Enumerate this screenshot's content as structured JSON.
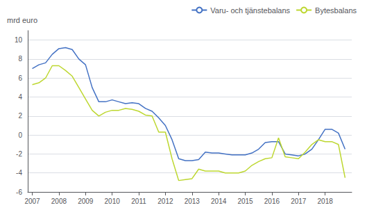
{
  "chart_data": {
    "type": "line",
    "ylabel": "mrd euro",
    "x": [
      2007.0,
      2007.25,
      2007.5,
      2007.75,
      2008.0,
      2008.25,
      2008.5,
      2008.75,
      2009.0,
      2009.25,
      2009.5,
      2009.75,
      2010.0,
      2010.25,
      2010.5,
      2010.75,
      2011.0,
      2011.25,
      2011.5,
      2011.75,
      2012.0,
      2012.25,
      2012.5,
      2012.75,
      2013.0,
      2013.25,
      2013.5,
      2013.75,
      2014.0,
      2014.25,
      2014.5,
      2014.75,
      2015.0,
      2015.25,
      2015.5,
      2015.75,
      2016.0,
      2016.25,
      2016.5,
      2016.75,
      2017.0,
      2017.25,
      2017.5,
      2017.75,
      2018.0,
      2018.25,
      2018.5,
      2018.75
    ],
    "series": [
      {
        "name": "Varu- och tjänstebalans",
        "color": "#4472c4",
        "values": [
          7.0,
          7.4,
          7.6,
          8.5,
          9.1,
          9.2,
          9.0,
          8.0,
          7.4,
          5.0,
          3.5,
          3.5,
          3.7,
          3.5,
          3.3,
          3.4,
          3.3,
          2.8,
          2.5,
          1.8,
          1.0,
          -0.5,
          -2.5,
          -2.7,
          -2.7,
          -2.6,
          -1.8,
          -1.9,
          -1.9,
          -2.0,
          -2.1,
          -2.1,
          -2.1,
          -1.9,
          -1.5,
          -0.8,
          -0.7,
          -0.7,
          -2.0,
          -2.1,
          -2.2,
          -2.0,
          -1.5,
          -0.5,
          0.6,
          0.6,
          0.2,
          -1.5
        ]
      },
      {
        "name": "Bytesbalans",
        "color": "#bdd730",
        "values": [
          5.3,
          5.5,
          6.0,
          7.3,
          7.3,
          6.8,
          6.2,
          5.0,
          3.8,
          2.6,
          2.0,
          2.4,
          2.6,
          2.6,
          2.8,
          2.7,
          2.5,
          2.1,
          2.0,
          0.3,
          0.3,
          -2.5,
          -4.8,
          -4.7,
          -4.6,
          -3.6,
          -3.8,
          -3.8,
          -3.8,
          -4.0,
          -4.0,
          -4.0,
          -3.8,
          -3.2,
          -2.8,
          -2.5,
          -2.4,
          -0.3,
          -2.3,
          -2.4,
          -2.5,
          -1.8,
          -1.0,
          -0.5,
          -0.7,
          -0.7,
          -1.0,
          -4.5
        ]
      }
    ],
    "xlim": [
      2006.83,
      2019.0
    ],
    "xticks": [
      2007,
      2008,
      2009,
      2010,
      2011,
      2012,
      2013,
      2014,
      2015,
      2016,
      2017,
      2018
    ],
    "ylim": [
      -6,
      11
    ],
    "yticks": [
      -6,
      -4,
      -2,
      0,
      2,
      4,
      6,
      8,
      10
    ],
    "grid": "y",
    "legend": "upper right"
  }
}
